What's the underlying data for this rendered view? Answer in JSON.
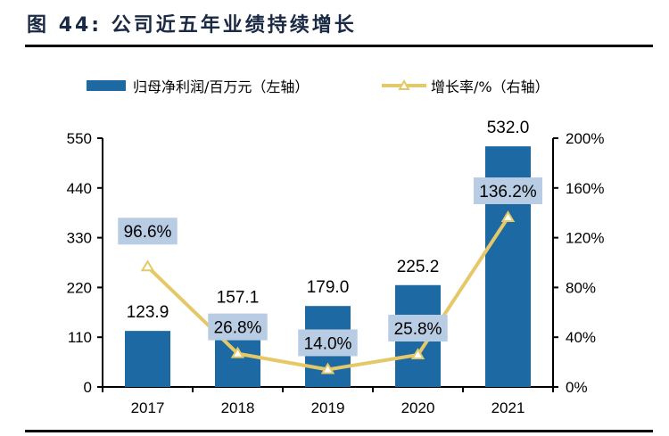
{
  "title": {
    "prefix": "图",
    "number": "44:",
    "text": "公司近五年业绩持续增长"
  },
  "colors": {
    "bar": "#1c69a3",
    "line": "#e5c867",
    "label_box": "#b8cde3",
    "axis": "#000000"
  },
  "chart_data": {
    "type": "bar+line",
    "title": "图 44: 公司近五年业绩持续增长",
    "categories": [
      "2017",
      "2018",
      "2019",
      "2020",
      "2021"
    ],
    "series": [
      {
        "name": "归母净利润/百万元（左轴）",
        "type": "bar",
        "axis": "left",
        "values": [
          123.9,
          157.1,
          179.0,
          225.2,
          532.0
        ],
        "labels": [
          "123.9",
          "157.1",
          "179.0",
          "225.2",
          "532.0"
        ]
      },
      {
        "name": "增长率/%（右轴）",
        "type": "line",
        "axis": "right",
        "marker": "triangle",
        "values": [
          96.6,
          26.8,
          14.0,
          25.8,
          136.2
        ],
        "labels": [
          "96.6%",
          "26.8%",
          "14.0%",
          "25.8%",
          "136.2%"
        ]
      }
    ],
    "left_axis": {
      "ylim": [
        0,
        550
      ],
      "ticks": [
        0,
        110,
        220,
        330,
        440,
        550
      ],
      "tick_labels": [
        "0",
        "110",
        "220",
        "330",
        "440",
        "550"
      ]
    },
    "right_axis": {
      "ylim": [
        0,
        200
      ],
      "ticks": [
        0,
        40,
        80,
        120,
        160,
        200
      ],
      "tick_labels": [
        "0%",
        "40%",
        "80%",
        "120%",
        "160%",
        "200%"
      ]
    },
    "xlabel": "",
    "ylabel": "",
    "grid": false,
    "legend_position": "top"
  }
}
